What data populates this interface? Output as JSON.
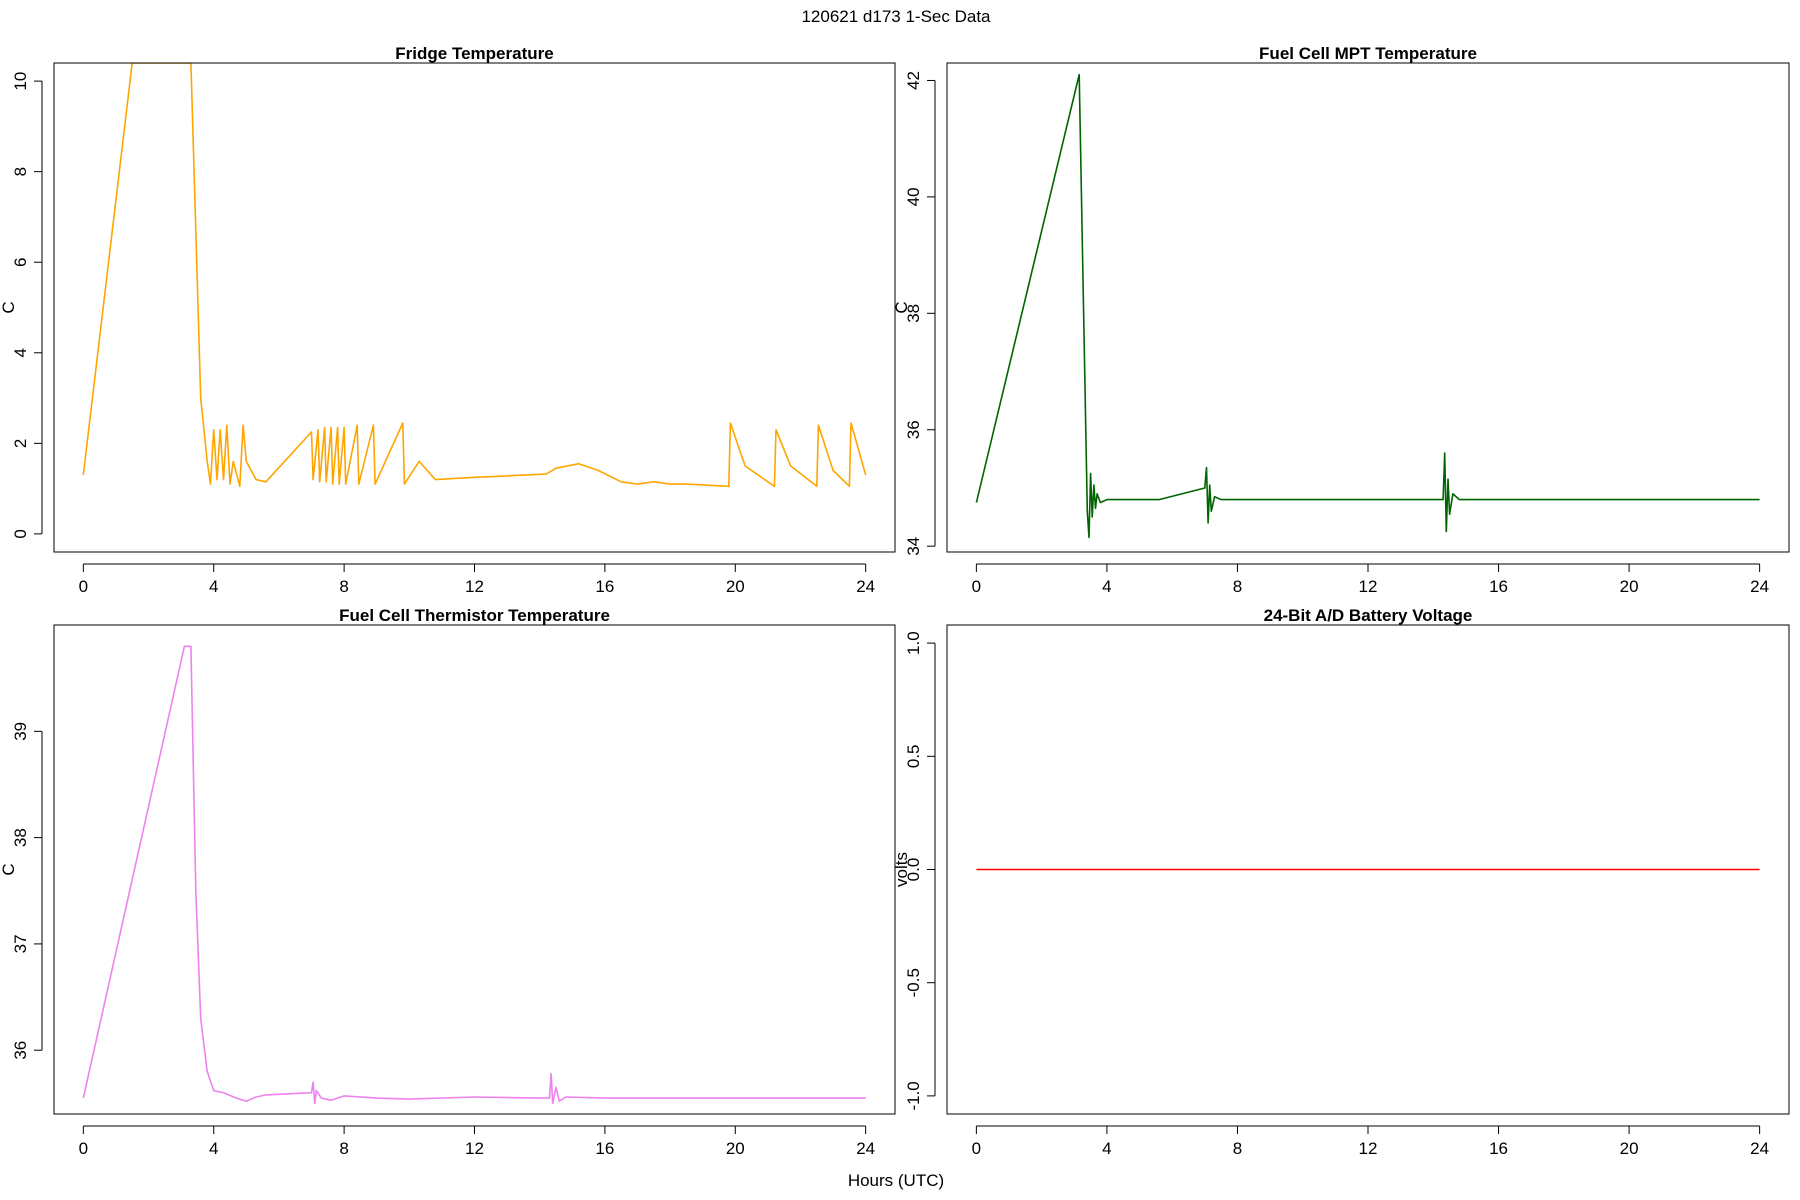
{
  "figure": {
    "title": "120621   d173   1-Sec Data",
    "xlabel": "Hours (UTC)"
  },
  "chart_data": [
    {
      "type": "line",
      "title": "Fridge Temperature",
      "ylabel": "C",
      "xlabel": "Hours (UTC)",
      "color": "#FFA500",
      "xlim": [
        -0.9,
        24.9
      ],
      "ylim": [
        -0.4,
        10.4
      ],
      "xticks": [
        0,
        4,
        8,
        12,
        16,
        20,
        24
      ],
      "yticks": [
        0,
        2,
        4,
        6,
        8,
        10
      ],
      "x": [
        0,
        1.5,
        3.3,
        3.6,
        3.8,
        3.9,
        4.0,
        4.1,
        4.2,
        4.3,
        4.4,
        4.5,
        4.6,
        4.8,
        4.9,
        5.0,
        5.3,
        5.6,
        7.0,
        7.05,
        7.2,
        7.25,
        7.4,
        7.45,
        7.6,
        7.65,
        7.8,
        7.85,
        8.0,
        8.05,
        8.4,
        8.45,
        8.9,
        8.95,
        9.8,
        9.85,
        10.3,
        10.8,
        12,
        13,
        14.2,
        14.5,
        15.2,
        15.8,
        16.5,
        17,
        17.5,
        18,
        18.5,
        19.8,
        19.85,
        20.3,
        21.2,
        21.25,
        21.7,
        22.5,
        22.55,
        23.0,
        23.5,
        23.55,
        24
      ],
      "y": [
        1.3,
        10.4,
        10.4,
        3.0,
        1.6,
        1.1,
        2.3,
        1.2,
        2.3,
        1.2,
        2.4,
        1.1,
        1.6,
        1.05,
        2.4,
        1.6,
        1.2,
        1.15,
        2.25,
        1.2,
        2.3,
        1.15,
        2.35,
        1.15,
        2.35,
        1.1,
        2.35,
        1.1,
        2.35,
        1.1,
        2.4,
        1.1,
        2.4,
        1.1,
        2.45,
        1.1,
        1.6,
        1.2,
        1.25,
        1.28,
        1.32,
        1.45,
        1.55,
        1.4,
        1.15,
        1.1,
        1.15,
        1.1,
        1.1,
        1.05,
        2.45,
        1.5,
        1.05,
        2.3,
        1.5,
        1.05,
        2.4,
        1.4,
        1.05,
        2.45,
        1.3
      ]
    },
    {
      "type": "line",
      "title": "Fuel Cell MPT Temperature",
      "ylabel": "C",
      "xlabel": "Hours (UTC)",
      "color": "#006400",
      "xlim": [
        -0.9,
        24.9
      ],
      "ylim": [
        33.9,
        42.3
      ],
      "xticks": [
        0,
        4,
        8,
        12,
        16,
        20,
        24
      ],
      "yticks": [
        34,
        36,
        38,
        40,
        42
      ],
      "x": [
        0,
        3.15,
        3.4,
        3.45,
        3.5,
        3.55,
        3.6,
        3.65,
        3.7,
        3.8,
        4.0,
        5.6,
        7.0,
        7.05,
        7.1,
        7.15,
        7.2,
        7.3,
        7.5,
        14.3,
        14.35,
        14.4,
        14.45,
        14.5,
        14.6,
        14.8,
        24
      ],
      "y": [
        34.75,
        42.1,
        34.6,
        34.15,
        35.25,
        34.5,
        35.05,
        34.65,
        34.9,
        34.75,
        34.8,
        34.8,
        35.0,
        35.35,
        34.4,
        35.05,
        34.6,
        34.85,
        34.8,
        34.8,
        35.6,
        34.25,
        35.15,
        34.55,
        34.9,
        34.8,
        34.8
      ]
    },
    {
      "type": "line",
      "title": "Fuel Cell Thermistor Temperature",
      "ylabel": "C",
      "xlabel": "Hours (UTC)",
      "color": "#EE82EE",
      "xlim": [
        -0.9,
        24.9
      ],
      "ylim": [
        35.4,
        40.0
      ],
      "xticks": [
        0,
        4,
        8,
        12,
        16,
        20,
        24
      ],
      "yticks": [
        36,
        37,
        38,
        39
      ],
      "x": [
        0,
        3.1,
        3.3,
        3.45,
        3.6,
        3.8,
        4.0,
        4.3,
        4.7,
        5.0,
        5.3,
        5.6,
        7.0,
        7.05,
        7.1,
        7.15,
        7.3,
        7.6,
        8.0,
        9.0,
        10.0,
        12.0,
        14.0,
        14.3,
        14.35,
        14.4,
        14.5,
        14.6,
        14.8,
        16,
        20,
        24
      ],
      "y": [
        35.55,
        39.8,
        39.8,
        37.5,
        36.3,
        35.8,
        35.62,
        35.6,
        35.55,
        35.52,
        35.56,
        35.58,
        35.6,
        35.7,
        35.5,
        35.62,
        35.55,
        35.53,
        35.57,
        35.55,
        35.54,
        35.56,
        35.55,
        35.55,
        35.78,
        35.5,
        35.65,
        35.52,
        35.56,
        35.55,
        35.55,
        35.55
      ]
    },
    {
      "type": "line",
      "title": "24-Bit A/D Battery Voltage",
      "ylabel": "volts",
      "xlabel": "Hours (UTC)",
      "color": "#FF0000",
      "xlim": [
        -0.9,
        24.9
      ],
      "ylim": [
        -1.08,
        1.08
      ],
      "xticks": [
        0,
        4,
        8,
        12,
        16,
        20,
        24
      ],
      "yticks": [
        -1.0,
        -0.5,
        0.0,
        0.5,
        1.0
      ],
      "ytick_labels": [
        "-1.0",
        "-0.5",
        "0.0",
        "0.5",
        "1.0"
      ],
      "x": [
        0,
        24
      ],
      "y": [
        0,
        0
      ]
    }
  ]
}
